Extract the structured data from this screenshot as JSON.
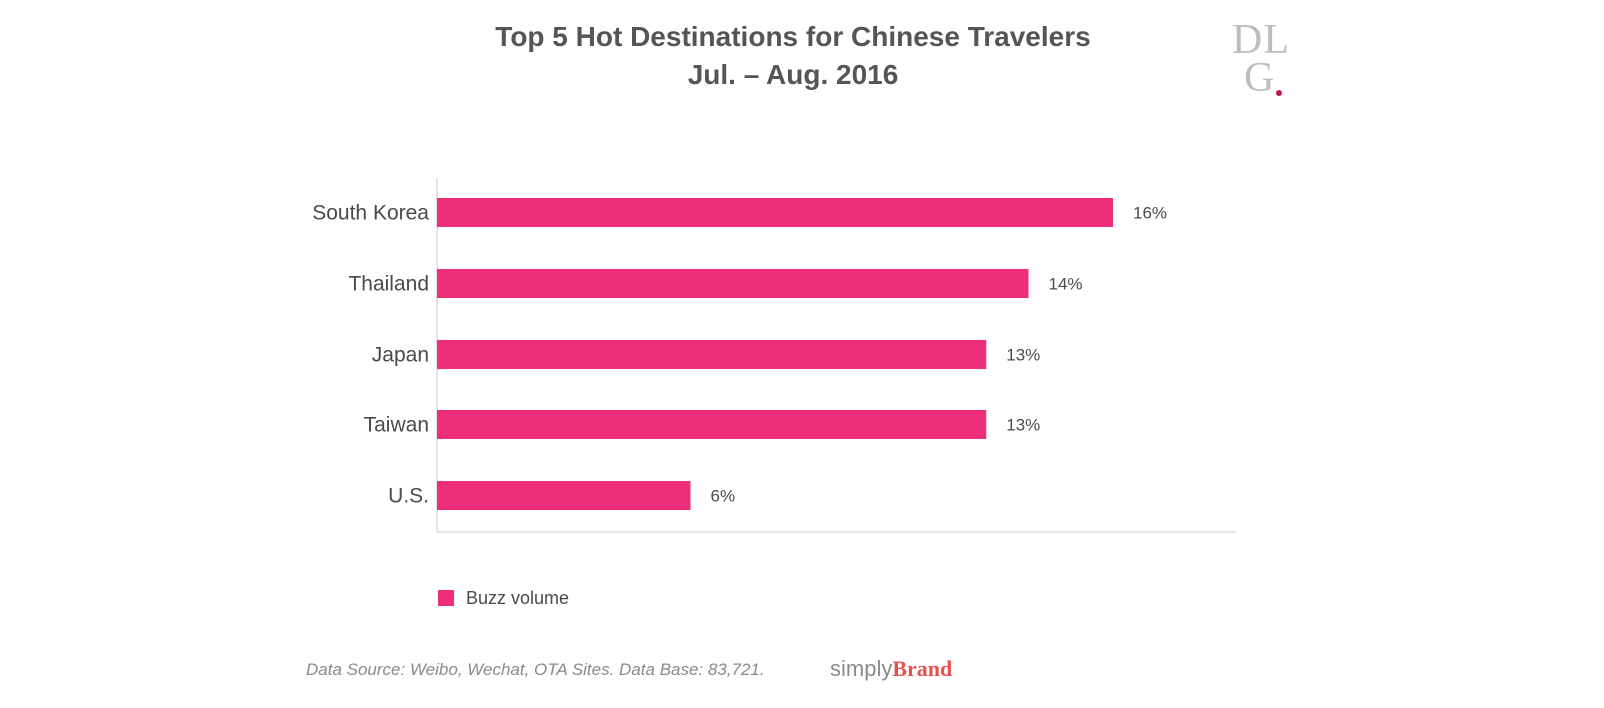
{
  "chart_data": {
    "type": "bar",
    "orientation": "horizontal",
    "title": "Top 5 Hot Destinations for Chinese Travelers",
    "subtitle": "Jul. – Aug. 2016",
    "categories": [
      "South Korea",
      "Thailand",
      "Japan",
      "Taiwan",
      "U.S."
    ],
    "series": [
      {
        "name": "Buzz volume",
        "values": [
          16,
          14,
          13,
          13,
          6
        ],
        "labels": [
          "16%",
          "14%",
          "13%",
          "13%",
          "6%"
        ],
        "color": "#EE2E7B"
      }
    ],
    "xlabel": "",
    "ylabel": "",
    "xlim": [
      0,
      19
    ],
    "grid": false,
    "legend_position": "bottom-left"
  },
  "logo": {
    "line1": "DL",
    "line2": "G",
    "dot_color": "#C8134F"
  },
  "footer": {
    "source": "Data Source: Weibo, Wechat, OTA Sites. Data Base: 83,721.",
    "brand_light": "simply",
    "brand_bold": "Brand",
    "brand_color": "#E8504A"
  }
}
